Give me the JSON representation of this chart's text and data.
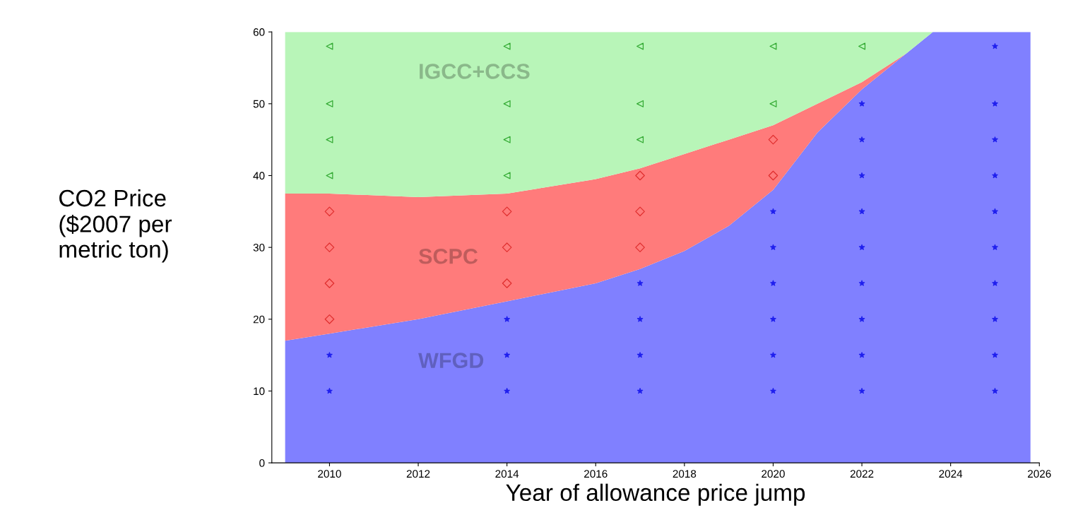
{
  "chart_data": {
    "type": "area",
    "stacked": true,
    "xlabel": "Year of allowance price jump",
    "ylabel": "CO2 Price\n($2007 per\nmetric ton)",
    "x": [
      2009,
      2010,
      2012,
      2014,
      2016,
      2017,
      2018,
      2019,
      2020,
      2021,
      2022,
      2023,
      2023.6,
      2025.8
    ],
    "series": [
      {
        "name": "WFGD",
        "color": "#8080ff",
        "values": [
          17,
          18,
          20,
          22.5,
          25,
          27,
          29.5,
          33,
          38,
          46,
          52,
          57,
          60,
          60
        ]
      },
      {
        "name": "SCPC",
        "color": "#ff7b7b",
        "values": [
          20.5,
          19.5,
          17,
          15,
          14.5,
          14,
          13.5,
          12,
          9,
          4,
          1,
          0,
          0,
          0
        ]
      },
      {
        "name": "IGCC+CCS",
        "color": "#b8f5b8",
        "values": [
          22.5,
          22.5,
          23,
          22.5,
          20.5,
          19,
          17,
          15,
          13,
          10,
          7,
          3,
          0,
          0
        ]
      },
      {
        "type": "scatter",
        "marker": "triangle",
        "color": "#33aa33",
        "x": [
          2010,
          2010,
          2010,
          2010,
          2014,
          2014,
          2014,
          2014,
          2017,
          2017,
          2017,
          2020,
          2020,
          2022
        ],
        "values": [
          40,
          45,
          50,
          58,
          40,
          45,
          50,
          58,
          45,
          50,
          58,
          50,
          58,
          58
        ]
      },
      {
        "type": "scatter",
        "marker": "diamond",
        "color": "#e03030",
        "x": [
          2010,
          2010,
          2010,
          2010,
          2014,
          2014,
          2014,
          2017,
          2017,
          2017,
          2020,
          2020
        ],
        "values": [
          20,
          25,
          30,
          35,
          25,
          30,
          35,
          30,
          35,
          40,
          40,
          45
        ]
      },
      {
        "type": "scatter",
        "marker": "star",
        "color": "#2020ee",
        "x": [
          2010,
          2010,
          2014,
          2014,
          2014,
          2017,
          2017,
          2017,
          2017,
          2020,
          2020,
          2020,
          2020,
          2020,
          2020,
          2022,
          2022,
          2022,
          2022,
          2022,
          2022,
          2022,
          2022,
          2022,
          2025,
          2025,
          2025,
          2025,
          2025,
          2025,
          2025,
          2025,
          2025,
          2025
        ],
        "values": [
          10,
          15,
          10,
          15,
          20,
          10,
          15,
          20,
          25,
          10,
          15,
          20,
          25,
          30,
          35,
          10,
          15,
          20,
          25,
          30,
          35,
          40,
          45,
          50,
          10,
          15,
          20,
          25,
          30,
          35,
          40,
          45,
          50,
          58
        ]
      }
    ],
    "xlim": [
      2008.7,
      2026
    ],
    "ylim": [
      0,
      60
    ],
    "xticks": [
      2010,
      2012,
      2014,
      2016,
      2018,
      2020,
      2022,
      2024,
      2026
    ],
    "yticks": [
      0,
      10,
      20,
      30,
      40,
      50,
      60
    ],
    "grid": false,
    "legend": false
  }
}
